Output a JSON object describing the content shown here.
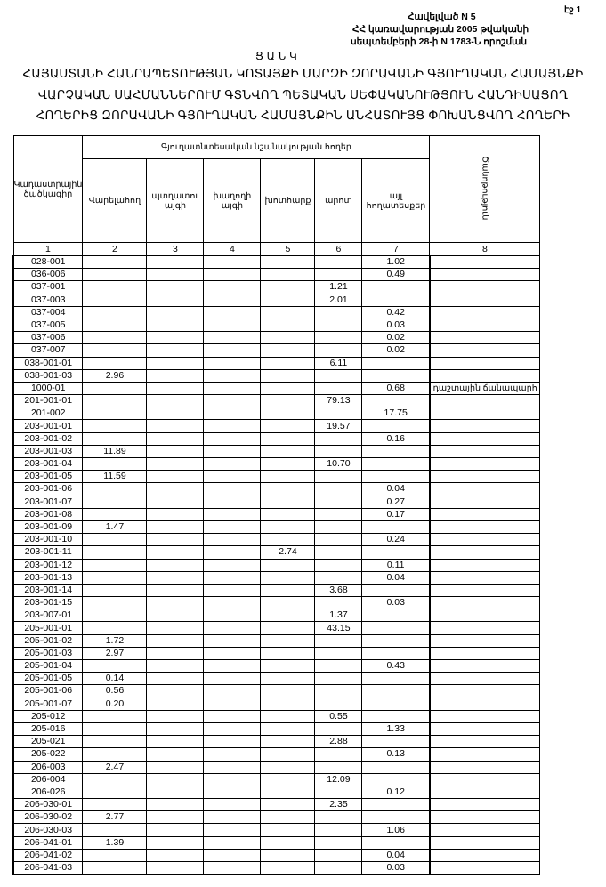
{
  "header": {
    "page_label": "էջ 1",
    "annex_line1": "Հավելված N 5",
    "annex_line2": "ՀՀ կառավարության 2005 թվականի",
    "annex_line3": "սեպտեմբերի 28-ի N 1783-Ն որոշման"
  },
  "title": {
    "heading": "Ց Ա Ն Կ",
    "line1": "ՀԱՅԱՍՏԱՆԻ ՀԱՆՐԱՊԵՏՈՒԹՅԱՆ  ԿՈՏԱՅՔԻ  ՄԱՐԶԻ  ԶՈՐԱՎԱՆԻ ԳՅՈՒՂԱԿԱՆ  ՀԱՄԱՅՆՔԻ",
    "line2": "ՎԱՐՉԱԿԱՆ ՍԱՀՄԱՆՆԵՐՈՒՄ  ԳՏՆՎՈՂ   ՊԵՏԱԿԱՆ ՍԵՓԱԿԱՆՈՒԹՅՈՒՆ  ՀԱՆԴԻՍԱՑՈՂ",
    "line3": "ՀՈՂԵՐԻՑ  ԶՈՐԱՎԱՆԻ ԳՅՈՒՂԱԿԱՆ ՀԱՄԱՅՆՔԻՆ ԱՆՀԱՏՈՒՅՑ ՓՈԽԱՆՑՎՈՂ   ՀՈՂԵՐԻ"
  },
  "table": {
    "col_cadastral": "Կադաստրային ծածկագիր",
    "group_header": "Գյուղատնտեսական նշանակության հողեր",
    "col_arable": "Վարելահող",
    "col_orchard": "պտղատու այգի",
    "col_vineyard": "խաղողի այգի",
    "col_hayfield": "խոտհարք",
    "col_pasture": "արոտ",
    "col_other": "այլ հողատեսքեր",
    "col_note": "Ծանոթություն",
    "col_numbers": [
      "1",
      "2",
      "3",
      "4",
      "5",
      "6",
      "7",
      "8"
    ],
    "rows": [
      [
        "028-001",
        "",
        "",
        "",
        "",
        "",
        "1.02",
        ""
      ],
      [
        "036-006",
        "",
        "",
        "",
        "",
        "",
        "0.49",
        ""
      ],
      [
        "037-001",
        "",
        "",
        "",
        "",
        "1.21",
        "",
        ""
      ],
      [
        "037-003",
        "",
        "",
        "",
        "",
        "2.01",
        "",
        ""
      ],
      [
        "037-004",
        "",
        "",
        "",
        "",
        "",
        "0.42",
        ""
      ],
      [
        "037-005",
        "",
        "",
        "",
        "",
        "",
        "0.03",
        ""
      ],
      [
        "037-006",
        "",
        "",
        "",
        "",
        "",
        "0.02",
        ""
      ],
      [
        "037-007",
        "",
        "",
        "",
        "",
        "",
        "0.02",
        ""
      ],
      [
        "038-001-01",
        "",
        "",
        "",
        "",
        "6.11",
        "",
        ""
      ],
      [
        "038-001-03",
        "2.96",
        "",
        "",
        "",
        "",
        "",
        ""
      ],
      [
        "1000-01",
        "",
        "",
        "",
        "",
        "",
        "0.68",
        "դաշտային ճանապարհ"
      ],
      [
        "201-001-01",
        "",
        "",
        "",
        "",
        "79.13",
        "",
        ""
      ],
      [
        "201-002",
        "",
        "",
        "",
        "",
        "",
        "17.75",
        ""
      ],
      [
        "203-001-01",
        "",
        "",
        "",
        "",
        "19.57",
        "",
        ""
      ],
      [
        "203-001-02",
        "",
        "",
        "",
        "",
        "",
        "0.16",
        ""
      ],
      [
        "203-001-03",
        "11.89",
        "",
        "",
        "",
        "",
        "",
        ""
      ],
      [
        "203-001-04",
        "",
        "",
        "",
        "",
        "10.70",
        "",
        ""
      ],
      [
        "203-001-05",
        "11.59",
        "",
        "",
        "",
        "",
        "",
        ""
      ],
      [
        "203-001-06",
        "",
        "",
        "",
        "",
        "",
        "0.04",
        ""
      ],
      [
        "203-001-07",
        "",
        "",
        "",
        "",
        "",
        "0.27",
        ""
      ],
      [
        "203-001-08",
        "",
        "",
        "",
        "",
        "",
        "0.17",
        ""
      ],
      [
        "203-001-09",
        "1.47",
        "",
        "",
        "",
        "",
        "",
        ""
      ],
      [
        "203-001-10",
        "",
        "",
        "",
        "",
        "",
        "0.24",
        ""
      ],
      [
        "203-001-11",
        "",
        "",
        "",
        "2.74",
        "",
        "",
        ""
      ],
      [
        "203-001-12",
        "",
        "",
        "",
        "",
        "",
        "0.11",
        ""
      ],
      [
        "203-001-13",
        "",
        "",
        "",
        "",
        "",
        "0.04",
        ""
      ],
      [
        "203-001-14",
        "",
        "",
        "",
        "",
        "3.68",
        "",
        ""
      ],
      [
        "203-001-15",
        "",
        "",
        "",
        "",
        "",
        "0.03",
        ""
      ],
      [
        "203-007-01",
        "",
        "",
        "",
        "",
        "1.37",
        "",
        ""
      ],
      [
        "205-001-01",
        "",
        "",
        "",
        "",
        "43.15",
        "",
        ""
      ],
      [
        "205-001-02",
        "1.72",
        "",
        "",
        "",
        "",
        "",
        ""
      ],
      [
        "205-001-03",
        "2.97",
        "",
        "",
        "",
        "",
        "",
        ""
      ],
      [
        "205-001-04",
        "",
        "",
        "",
        "",
        "",
        "0.43",
        ""
      ],
      [
        "205-001-05",
        "0.14",
        "",
        "",
        "",
        "",
        "",
        ""
      ],
      [
        "205-001-06",
        "0.56",
        "",
        "",
        "",
        "",
        "",
        ""
      ],
      [
        "205-001-07",
        "0.20",
        "",
        "",
        "",
        "",
        "",
        ""
      ],
      [
        "205-012",
        "",
        "",
        "",
        "",
        "0.55",
        "",
        ""
      ],
      [
        "205-016",
        "",
        "",
        "",
        "",
        "",
        "1.33",
        ""
      ],
      [
        "205-021",
        "",
        "",
        "",
        "",
        "2.88",
        "",
        ""
      ],
      [
        "205-022",
        "",
        "",
        "",
        "",
        "",
        "0.13",
        ""
      ],
      [
        "206-003",
        "2.47",
        "",
        "",
        "",
        "",
        "",
        ""
      ],
      [
        "206-004",
        "",
        "",
        "",
        "",
        "12.09",
        "",
        ""
      ],
      [
        "206-026",
        "",
        "",
        "",
        "",
        "",
        "0.12",
        ""
      ],
      [
        "206-030-01",
        "",
        "",
        "",
        "",
        "2.35",
        "",
        ""
      ],
      [
        "206-030-02",
        "2.77",
        "",
        "",
        "",
        "",
        "",
        ""
      ],
      [
        "206-030-03",
        "",
        "",
        "",
        "",
        "",
        "1.06",
        ""
      ],
      [
        "206-041-01",
        "1.39",
        "",
        "",
        "",
        "",
        "",
        ""
      ],
      [
        "206-041-02",
        "",
        "",
        "",
        "",
        "",
        "0.04",
        ""
      ],
      [
        "206-041-03",
        "",
        "",
        "",
        "",
        "",
        "0.03",
        ""
      ]
    ]
  }
}
